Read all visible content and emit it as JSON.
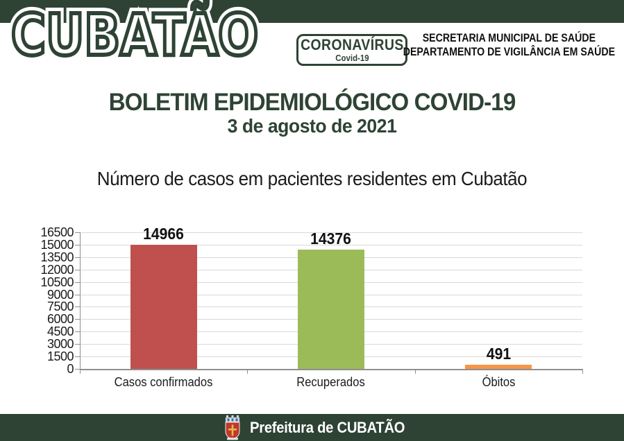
{
  "header": {
    "logo_text": "CUBATÃO",
    "badge": {
      "line1": "CORONAVÍRUS",
      "line2": "Covid-19"
    },
    "department": {
      "line1": "SECRETARIA MUNICIPAL DE SAÚDE",
      "line2": "DEPARTAMENTO DE VIGILÂNCIA EM SAÚDE"
    }
  },
  "title": {
    "main": "BOLETIM EPIDEMIOLÓGICO COVID-19",
    "date": "3 de agosto de 2021"
  },
  "subtitle": "Número de casos em pacientes residentes em Cubatão",
  "chart_data": {
    "type": "bar",
    "title": "Número de casos em pacientes residentes em Cubatão",
    "categories": [
      "Casos confirmados",
      "Recuperados",
      "Óbitos"
    ],
    "values": [
      14966,
      14376,
      491
    ],
    "value_labels": [
      "14966",
      "14376",
      "491"
    ],
    "bar_colors": [
      "#c0504d",
      "#9bbb59",
      "#f79646"
    ],
    "xlabel": "",
    "ylabel": "",
    "ylim": [
      0,
      16500
    ],
    "ytick_step": 1500,
    "grid": true,
    "legend": false
  },
  "footer": {
    "label": "Prefeitura de CUBATÃO",
    "icon": "cubatao-crest-icon"
  },
  "colors": {
    "theme_green": "#2e4334",
    "bar_red": "#c0504d",
    "bar_green": "#9bbb59",
    "bar_orange": "#f79646",
    "gridline": "#d9d9d9",
    "axis": "#8f8f8f",
    "text_black": "#1b1b1b",
    "white": "#ffffff"
  }
}
